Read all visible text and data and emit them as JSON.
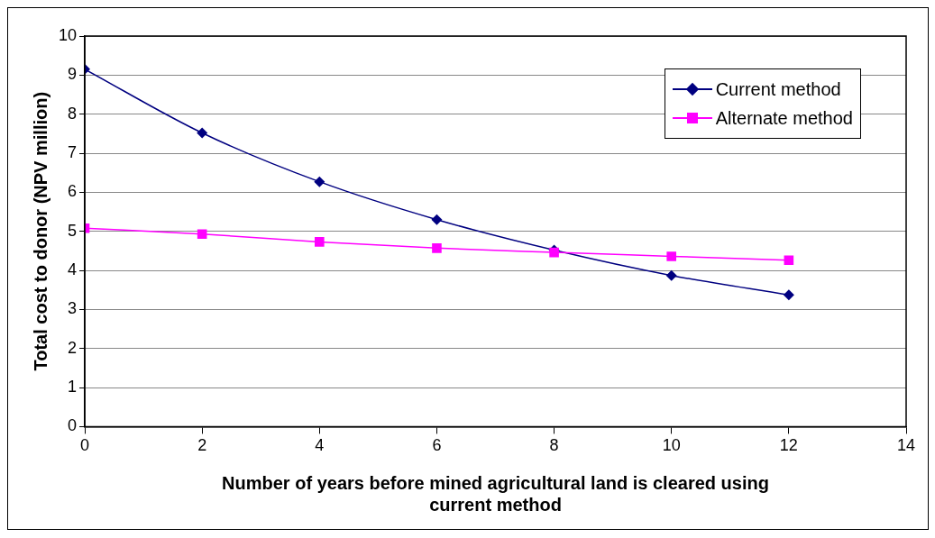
{
  "chart_data": {
    "type": "line",
    "xlabel": "Number of years before mined agricultural land is cleared using current method",
    "ylabel": "Total cost to donor (NPV million)",
    "x": [
      0,
      2,
      4,
      6,
      8,
      10,
      12
    ],
    "series": [
      {
        "name": "Current method",
        "color": "#000080",
        "marker": "diamond",
        "values": [
          9.15,
          7.52,
          6.27,
          5.3,
          4.52,
          3.87,
          3.37
        ]
      },
      {
        "name": "Alternate method",
        "color": "#ff00ff",
        "marker": "square",
        "values": [
          5.08,
          4.93,
          4.73,
          4.57,
          4.46,
          4.36,
          4.26
        ]
      }
    ],
    "xlim": [
      0,
      14
    ],
    "xticks": [
      0,
      2,
      4,
      6,
      8,
      10,
      12,
      14
    ],
    "ylim": [
      0,
      10
    ],
    "yticks": [
      0,
      1,
      2,
      3,
      4,
      5,
      6,
      7,
      8,
      9,
      10
    ],
    "grid": "y",
    "legend": "top right",
    "line_style": "solid"
  }
}
